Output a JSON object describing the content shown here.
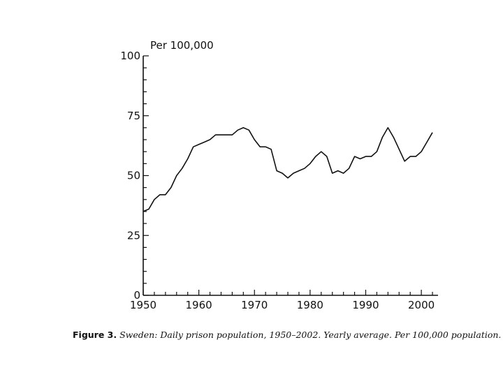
{
  "chart_data": {
    "type": "line",
    "title": "",
    "ylabel": "Per 100,000",
    "xlabel": "",
    "xlim": [
      1950,
      2003
    ],
    "ylim": [
      0,
      100
    ],
    "x_ticks": [
      1950,
      1960,
      1970,
      1980,
      1990,
      2000
    ],
    "y_ticks": [
      0,
      25,
      50,
      75,
      100
    ],
    "grid": false,
    "legend": "none",
    "line_color": "#111111",
    "series": [
      {
        "x": [
          1950,
          1951,
          1952,
          1953,
          1954,
          1955,
          1956,
          1957,
          1958,
          1959,
          1960,
          1961,
          1962,
          1963,
          1964,
          1965,
          1966,
          1967,
          1968,
          1969,
          1970,
          1971,
          1972,
          1973,
          1974,
          1975,
          1976,
          1977,
          1978,
          1979,
          1980,
          1981,
          1982,
          1983,
          1984,
          1985,
          1986,
          1987,
          1988,
          1989,
          1990,
          1991,
          1992,
          1993,
          1994,
          1995,
          1996,
          1997,
          1998,
          1999,
          2000,
          2001,
          2002
        ],
        "values": [
          35,
          36,
          40,
          42,
          42,
          45,
          50,
          53,
          57,
          62,
          63,
          64,
          65,
          67,
          67,
          67,
          67,
          69,
          70,
          69,
          65,
          62,
          62,
          61,
          52,
          51,
          49,
          51,
          52,
          53,
          55,
          58,
          60,
          58,
          51,
          52,
          51,
          53,
          58,
          57,
          58,
          58,
          60,
          66,
          70,
          66,
          61,
          56,
          58,
          58,
          60,
          64,
          68
        ]
      }
    ]
  },
  "caption": {
    "lead": "Figure 3.",
    "text": "Sweden: Daily prison population, 1950–2002. Yearly average. Per 100,000 population."
  }
}
